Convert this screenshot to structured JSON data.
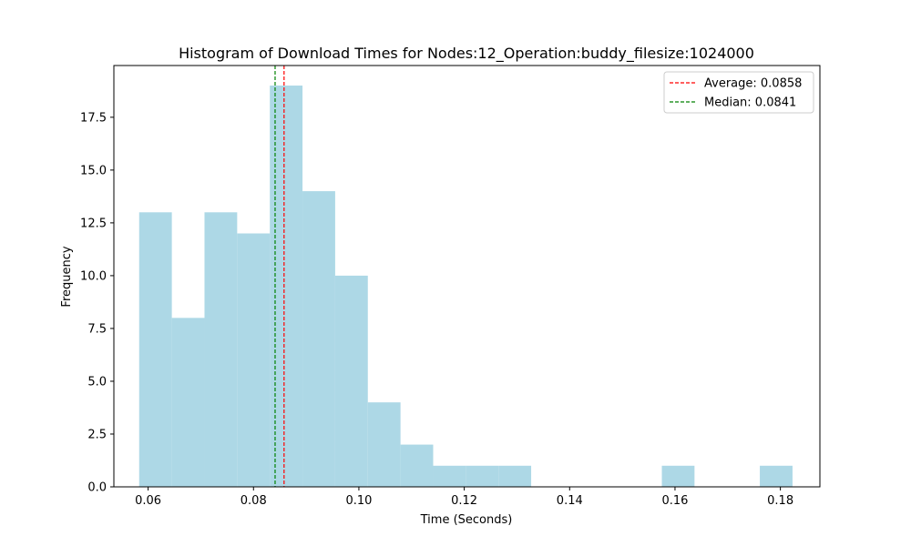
{
  "chart_data": {
    "type": "bar",
    "title": "Histogram of Download Times for Nodes:12_Operation:buddy_filesize:1024000",
    "xlabel": "Time (Seconds)",
    "ylabel": "Frequency",
    "xlim": [
      0.0535,
      0.1875
    ],
    "ylim": [
      0,
      19.95
    ],
    "xticks": [
      0.06,
      0.08,
      0.1,
      0.12,
      0.14,
      0.16,
      0.18
    ],
    "xtick_labels": [
      "0.06",
      "0.08",
      "0.10",
      "0.12",
      "0.14",
      "0.16",
      "0.18"
    ],
    "yticks": [
      0,
      2.5,
      5,
      7.5,
      10,
      12.5,
      15,
      17.5
    ],
    "ytick_labels": [
      "0.0",
      "2.5",
      "5.0",
      "7.5",
      "10.0",
      "12.5",
      "15.0",
      "17.5"
    ],
    "bins": [
      {
        "x0": 0.0583,
        "x1": 0.0645,
        "value": 13
      },
      {
        "x0": 0.0645,
        "x1": 0.0707,
        "value": 8
      },
      {
        "x0": 0.0707,
        "x1": 0.0769,
        "value": 13
      },
      {
        "x0": 0.0769,
        "x1": 0.0831,
        "value": 12
      },
      {
        "x0": 0.0831,
        "x1": 0.0893,
        "value": 19
      },
      {
        "x0": 0.0893,
        "x1": 0.0955,
        "value": 14
      },
      {
        "x0": 0.0955,
        "x1": 0.1017,
        "value": 10
      },
      {
        "x0": 0.1017,
        "x1": 0.1079,
        "value": 4
      },
      {
        "x0": 0.1079,
        "x1": 0.1141,
        "value": 2
      },
      {
        "x0": 0.1141,
        "x1": 0.1203,
        "value": 1
      },
      {
        "x0": 0.1203,
        "x1": 0.1265,
        "value": 1
      },
      {
        "x0": 0.1265,
        "x1": 0.1327,
        "value": 1
      },
      {
        "x0": 0.1327,
        "x1": 0.1389,
        "value": 0
      },
      {
        "x0": 0.1389,
        "x1": 0.1451,
        "value": 0
      },
      {
        "x0": 0.1451,
        "x1": 0.1513,
        "value": 0
      },
      {
        "x0": 0.1513,
        "x1": 0.1575,
        "value": 0
      },
      {
        "x0": 0.1575,
        "x1": 0.1637,
        "value": 1
      },
      {
        "x0": 0.1637,
        "x1": 0.1699,
        "value": 0
      },
      {
        "x0": 0.1699,
        "x1": 0.1761,
        "value": 0
      },
      {
        "x0": 0.1761,
        "x1": 0.1823,
        "value": 1
      }
    ],
    "bar_color": "#add8e6",
    "vlines": [
      {
        "name": "Average",
        "value": 0.0858,
        "label": "Average: 0.0858",
        "color": "#ff0000"
      },
      {
        "name": "Median",
        "value": 0.0841,
        "label": "Median: 0.0841",
        "color": "#008000"
      }
    ],
    "legend_position": "top-right",
    "grid": false
  }
}
